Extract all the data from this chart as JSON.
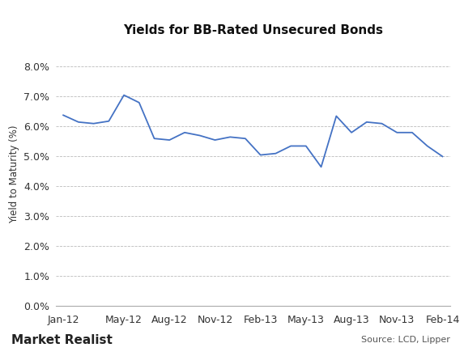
{
  "title": "Yields for BB-Rated Unsecured Bonds",
  "ylabel": "Yield to Maturity (%)",
  "source_text": "Source: LCD, Lipper",
  "watermark": "Market Realist",
  "line_color": "#4472C4",
  "background_color": "#ffffff",
  "ylim": [
    0.0,
    0.088
  ],
  "yticks": [
    0.0,
    0.01,
    0.02,
    0.03,
    0.04,
    0.05,
    0.06,
    0.07,
    0.08
  ],
  "xtick_labels": [
    "Jan-12",
    "May-12",
    "Aug-12",
    "Nov-12",
    "Feb-13",
    "May-13",
    "Aug-13",
    "Nov-13",
    "Feb-14"
  ],
  "x_values": [
    0,
    1,
    2,
    3,
    4,
    5,
    6,
    7,
    8,
    9,
    10,
    11,
    12,
    13,
    14,
    15,
    16,
    17,
    18,
    19,
    20,
    21,
    22,
    23,
    24,
    25
  ],
  "y_values": [
    0.0638,
    0.0615,
    0.061,
    0.0618,
    0.0705,
    0.068,
    0.056,
    0.0555,
    0.058,
    0.057,
    0.0555,
    0.0565,
    0.056,
    0.0505,
    0.051,
    0.0535,
    0.0535,
    0.0465,
    0.0635,
    0.058,
    0.0615,
    0.061,
    0.058,
    0.058,
    0.0535,
    0.05
  ],
  "xtick_positions": [
    0,
    4,
    7,
    10,
    13,
    16,
    19,
    22,
    25
  ],
  "title_fontsize": 11,
  "tick_fontsize": 9,
  "ylabel_fontsize": 8.5,
  "watermark_fontsize": 11,
  "source_fontsize": 8,
  "grid_color": "#bbbbbb",
  "grid_linestyle": "--",
  "spine_color": "#aaaaaa"
}
